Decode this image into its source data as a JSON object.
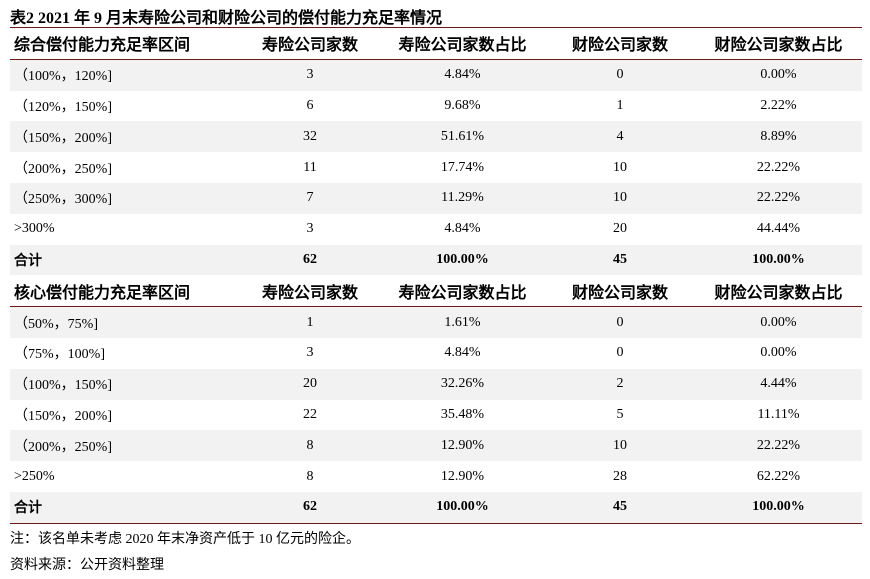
{
  "title": "表2  2021 年 9 月末寿险公司和财险公司的偿付能力充足率情况",
  "sections": [
    {
      "header": [
        "综合偿付能力充足率区间",
        "寿险公司家数",
        "寿险公司家数占比",
        "财险公司家数",
        "财险公司家数占比"
      ],
      "rows": [
        [
          "（100%，120%]",
          "3",
          "4.84%",
          "0",
          "0.00%"
        ],
        [
          "（120%，150%]",
          "6",
          "9.68%",
          "1",
          "2.22%"
        ],
        [
          "（150%，200%]",
          "32",
          "51.61%",
          "4",
          "8.89%"
        ],
        [
          "（200%，250%]",
          "11",
          "17.74%",
          "10",
          "22.22%"
        ],
        [
          "（250%，300%]",
          "7",
          "11.29%",
          "10",
          "22.22%"
        ],
        [
          ">300%",
          "3",
          "4.84%",
          "20",
          "44.44%"
        ]
      ],
      "total": [
        "合计",
        "62",
        "100.00%",
        "45",
        "100.00%"
      ]
    },
    {
      "header": [
        "核心偿付能力充足率区间",
        "寿险公司家数",
        "寿险公司家数占比",
        "财险公司家数",
        "财险公司家数占比"
      ],
      "rows": [
        [
          "（50%，75%]",
          "1",
          "1.61%",
          "0",
          "0.00%"
        ],
        [
          "（75%，100%]",
          "3",
          "4.84%",
          "0",
          "0.00%"
        ],
        [
          "（100%，150%]",
          "20",
          "32.26%",
          "2",
          "4.44%"
        ],
        [
          "（150%，200%]",
          "22",
          "35.48%",
          "5",
          "11.11%"
        ],
        [
          "（200%，250%]",
          "8",
          "12.90%",
          "10",
          "22.22%"
        ],
        [
          ">250%",
          "8",
          "12.90%",
          "28",
          "62.22%"
        ]
      ],
      "total": [
        "合计",
        "62",
        "100.00%",
        "45",
        "100.00%"
      ]
    }
  ],
  "notes": [
    "注：该名单未考虑 2020 年末净资产低于 10 亿元的险企。",
    "资料来源：公开资料整理"
  ]
}
